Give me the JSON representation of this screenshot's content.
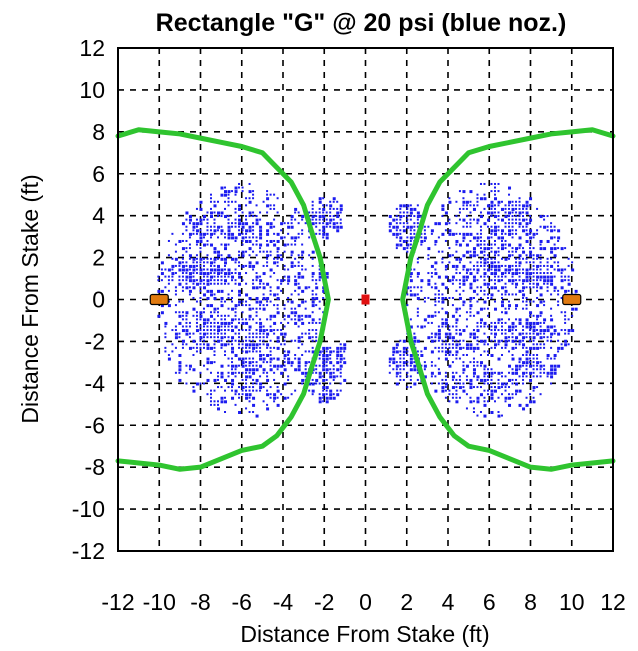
{
  "chart_data": {
    "type": "scatter",
    "title": "Rectangle \"G\" @ 20 psi (blue noz.)",
    "xlabel": "Distance From Stake (ft)",
    "ylabel": "Distance From Stake (ft)",
    "xlim": [
      -12,
      12
    ],
    "ylim": [
      -12,
      12
    ],
    "xticks": [
      "-12",
      "-10",
      "-8",
      "-6",
      "-4",
      "-2",
      "0",
      "2",
      "4",
      "6",
      "8",
      "10",
      "12"
    ],
    "yticks": [
      "12",
      "10",
      "8",
      "6",
      "4",
      "2",
      "0",
      "-2",
      "-4",
      "-6",
      "-8",
      "-10",
      "-12"
    ],
    "grid": true,
    "colors": {
      "coverage": "#1c1cf0",
      "boundary": "#2fc42f",
      "sprinkler_head": "#e07a10",
      "stake": "#e01010",
      "grid": "#000000"
    },
    "boundary_curves": [
      {
        "x": [
          -12,
          -11,
          -10,
          -9,
          -8,
          -7,
          -6,
          -5,
          -4.3,
          -3.6,
          -3.0,
          -2.6,
          -2.2,
          -2.0,
          -1.8,
          -2.0,
          -2.2,
          -2.6,
          -3.0,
          -3.6,
          -4.3,
          -5,
          -6,
          -7,
          -8,
          -9,
          -10,
          -11,
          -12
        ],
        "y": [
          7.8,
          8.1,
          8.0,
          7.9,
          7.7,
          7.5,
          7.3,
          7.0,
          6.3,
          5.6,
          4.5,
          3.2,
          2.0,
          1.0,
          0,
          -1.0,
          -2.0,
          -3.2,
          -4.5,
          -5.6,
          -6.5,
          -7.0,
          -7.2,
          -7.6,
          -8.0,
          -8.1,
          -7.9,
          -7.8,
          -7.7
        ]
      },
      {
        "x": [
          12,
          11,
          10,
          9,
          8,
          7,
          6,
          5,
          4.3,
          3.6,
          3.0,
          2.6,
          2.2,
          2.0,
          1.8,
          2.0,
          2.2,
          2.6,
          3.0,
          3.6,
          4.3,
          5,
          6,
          7,
          8,
          9,
          10,
          11,
          12
        ],
        "y": [
          7.8,
          8.1,
          8.0,
          7.9,
          7.7,
          7.5,
          7.3,
          7.0,
          6.3,
          5.6,
          4.5,
          3.2,
          2.0,
          1.0,
          0,
          -1.0,
          -2.0,
          -3.2,
          -4.5,
          -5.6,
          -6.5,
          -7.0,
          -7.2,
          -7.6,
          -8.0,
          -8.1,
          -7.9,
          -7.8,
          -7.7
        ]
      }
    ],
    "sprinkler_heads": [
      {
        "x": -10,
        "y": 0
      },
      {
        "x": 10,
        "y": 0
      }
    ],
    "stake": {
      "x": 0,
      "y": 0
    },
    "coverage_clusters": [
      {
        "cx": -6.0,
        "cy": 0.0,
        "rx": 4.2,
        "ry": 5.6,
        "density": 0.45
      },
      {
        "cx": 6.0,
        "cy": 0.0,
        "rx": 4.2,
        "ry": 5.6,
        "density": 0.45
      },
      {
        "cx": -8.0,
        "cy": 1.3,
        "rx": 1.8,
        "ry": 0.8,
        "density": 0.9
      },
      {
        "cx": -7.5,
        "cy": -1.5,
        "rx": 1.8,
        "ry": 0.9,
        "density": 0.85
      },
      {
        "cx": -5.5,
        "cy": -2.0,
        "rx": 1.0,
        "ry": 1.2,
        "density": 0.85
      },
      {
        "cx": -6.0,
        "cy": -3.8,
        "rx": 1.0,
        "ry": 0.8,
        "density": 0.85
      },
      {
        "cx": -8.0,
        "cy": 3.5,
        "rx": 1.0,
        "ry": 1.0,
        "density": 0.8
      },
      {
        "cx": -6.0,
        "cy": 3.5,
        "rx": 1.0,
        "ry": 0.9,
        "density": 0.75
      },
      {
        "cx": -2.0,
        "cy": 4.0,
        "rx": 0.9,
        "ry": 1.0,
        "density": 0.8
      },
      {
        "cx": -2.0,
        "cy": -3.5,
        "rx": 1.0,
        "ry": 1.4,
        "density": 0.8
      },
      {
        "cx": -1.0,
        "cy": -2.6,
        "rx": 0.6,
        "ry": 0.6,
        "density": 0.8
      },
      {
        "cx": 8.0,
        "cy": 1.3,
        "rx": 1.8,
        "ry": 0.8,
        "density": 0.9
      },
      {
        "cx": 7.5,
        "cy": -1.5,
        "rx": 1.8,
        "ry": 0.9,
        "density": 0.85
      },
      {
        "cx": 6.0,
        "cy": 2.0,
        "rx": 1.0,
        "ry": 1.2,
        "density": 0.85
      },
      {
        "cx": 8.0,
        "cy": -3.0,
        "rx": 1.0,
        "ry": 1.0,
        "density": 0.8
      },
      {
        "cx": 6.0,
        "cy": -3.8,
        "rx": 1.0,
        "ry": 0.9,
        "density": 0.75
      },
      {
        "cx": 7.0,
        "cy": 4.0,
        "rx": 1.2,
        "ry": 0.9,
        "density": 0.8
      },
      {
        "cx": 2.0,
        "cy": 3.5,
        "rx": 1.0,
        "ry": 1.2,
        "density": 0.8
      },
      {
        "cx": 2.0,
        "cy": -3.0,
        "rx": 1.0,
        "ry": 1.2,
        "density": 0.8
      },
      {
        "cx": 4.0,
        "cy": -2.0,
        "rx": 0.8,
        "ry": 0.8,
        "density": 0.75
      },
      {
        "cx": 4.0,
        "cy": -4.0,
        "rx": 0.8,
        "ry": 0.8,
        "density": 0.75
      }
    ]
  }
}
